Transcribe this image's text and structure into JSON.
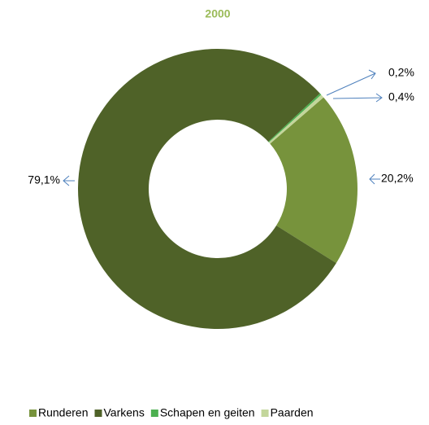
{
  "chart_data": {
    "type": "donut",
    "title": "2000",
    "categories": [
      "Runderen",
      "Varkens",
      "Schapen en geiten",
      "Paarden"
    ],
    "values": [
      20.2,
      79.1,
      0.2,
      0.4
    ],
    "value_labels": [
      "20,2%",
      "79,1%",
      "0,2%",
      "0,4%"
    ],
    "colors": [
      "#77933c",
      "#4f6228",
      "#4cb050",
      "#c3d69b"
    ],
    "legend": "bottom"
  }
}
